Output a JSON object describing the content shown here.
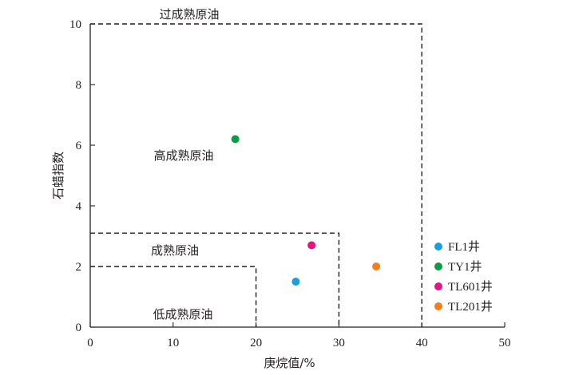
{
  "chart_data": {
    "type": "scatter",
    "xlabel": "庚烷值/%",
    "ylabel": "石蜡指数",
    "xlim": [
      0,
      50
    ],
    "ylim": [
      0,
      10
    ],
    "x_ticks": [
      "0",
      "10",
      "20",
      "30",
      "40",
      "50"
    ],
    "y_ticks": [
      "0",
      "2",
      "4",
      "6",
      "8",
      "10"
    ],
    "grid": false,
    "legend_position": "right",
    "zones": [
      {
        "label": "过成熟原油",
        "x_max": 40,
        "y_max": 10
      },
      {
        "label": "高成熟原油",
        "x_max": 40,
        "y_max": 10
      },
      {
        "label": "成熟原油",
        "x_max": 30,
        "y_max": 3.1
      },
      {
        "label": "低成熟原油",
        "x_max": 20,
        "y_max": 2
      }
    ],
    "series": [
      {
        "name": "FL1井",
        "color": "#1b9ee0",
        "x": [
          24.8
        ],
        "y": [
          1.5
        ]
      },
      {
        "name": "TY1井",
        "color": "#0f9a48",
        "x": [
          17.5
        ],
        "y": [
          6.2
        ]
      },
      {
        "name": "TL601井",
        "color": "#e4157f",
        "x": [
          26.7
        ],
        "y": [
          2.7
        ]
      },
      {
        "name": "TL201井",
        "color": "#f07f1c",
        "x": [
          34.5
        ],
        "y": [
          2.0
        ]
      }
    ]
  }
}
